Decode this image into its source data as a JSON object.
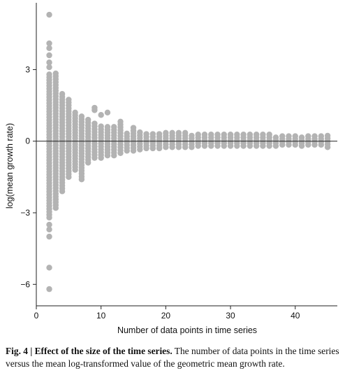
{
  "chart_data": {
    "type": "scatter",
    "xlabel": "Number of data points in time series",
    "ylabel": "log(mean growth rate)",
    "xlim": [
      0,
      46.5
    ],
    "ylim": [
      -6.9,
      5.8
    ],
    "xticks": [
      0,
      10,
      20,
      30,
      40
    ],
    "yticks": [
      -6,
      -3,
      0,
      3
    ],
    "ytick_labels": [
      "−6",
      "−3",
      "0",
      "3"
    ],
    "reference_line_y": 0,
    "grid": false,
    "point_color": "#b3b3b3",
    "series": [
      {
        "columns": [
          {
            "x": 2,
            "min": -3.2,
            "max": 2.8,
            "outliers": [
              5.3,
              4.1,
              3.9,
              3.6,
              3.3,
              3.1,
              -3.5,
              -3.7,
              -4.0,
              -5.3,
              -6.2
            ]
          },
          {
            "x": 3,
            "min": -2.8,
            "max": 2.9
          },
          {
            "x": 4,
            "min": -2.1,
            "max": 2.0
          },
          {
            "x": 5,
            "min": -1.5,
            "max": 1.8
          },
          {
            "x": 6,
            "min": -1.2,
            "max": 1.2
          },
          {
            "x": 7,
            "min": -1.6,
            "max": 1.1
          },
          {
            "x": 8,
            "min": -0.9,
            "max": 0.9
          },
          {
            "x": 9,
            "min": -0.7,
            "max": 0.8,
            "outliers": [
              1.4,
              1.3
            ]
          },
          {
            "x": 10,
            "min": -0.7,
            "max": 0.7,
            "outliers": [
              1.1
            ]
          },
          {
            "x": 11,
            "min": -0.6,
            "max": 0.7,
            "outliers": [
              1.2
            ]
          },
          {
            "x": 12,
            "min": -0.6,
            "max": 0.6
          },
          {
            "x": 13,
            "min": -0.5,
            "max": 0.9
          },
          {
            "x": 14,
            "min": -0.4,
            "max": 0.4
          },
          {
            "x": 15,
            "min": -0.4,
            "max": 0.6
          },
          {
            "x": 16,
            "min": -0.35,
            "max": 0.45
          },
          {
            "x": 17,
            "min": -0.3,
            "max": 0.4
          },
          {
            "x": 18,
            "min": -0.3,
            "max": 0.4
          },
          {
            "x": 19,
            "min": -0.3,
            "max": 0.4
          },
          {
            "x": 20,
            "min": -0.25,
            "max": 0.4
          },
          {
            "x": 21,
            "min": -0.25,
            "max": 0.35
          },
          {
            "x": 22,
            "min": -0.25,
            "max": 0.35
          },
          {
            "x": 23,
            "min": -0.25,
            "max": 0.35
          },
          {
            "x": 24,
            "min": -0.25,
            "max": 0.3
          },
          {
            "x": 25,
            "min": -0.2,
            "max": 0.35
          },
          {
            "x": 26,
            "min": -0.2,
            "max": 0.35
          },
          {
            "x": 27,
            "min": -0.2,
            "max": 0.3
          },
          {
            "x": 28,
            "min": -0.2,
            "max": 0.3
          },
          {
            "x": 29,
            "min": -0.2,
            "max": 0.3
          },
          {
            "x": 30,
            "min": -0.2,
            "max": 0.3
          },
          {
            "x": 31,
            "min": -0.2,
            "max": 0.3
          },
          {
            "x": 32,
            "min": -0.2,
            "max": 0.3
          },
          {
            "x": 33,
            "min": -0.2,
            "max": 0.3
          },
          {
            "x": 34,
            "min": -0.2,
            "max": 0.3
          },
          {
            "x": 35,
            "min": -0.2,
            "max": 0.3
          },
          {
            "x": 36,
            "min": -0.2,
            "max": 0.3
          },
          {
            "x": 37,
            "min": -0.2,
            "max": 0.25
          },
          {
            "x": 38,
            "min": -0.15,
            "max": 0.3
          },
          {
            "x": 39,
            "min": -0.15,
            "max": 0.3
          },
          {
            "x": 40,
            "min": -0.15,
            "max": 0.25
          },
          {
            "x": 41,
            "min": -0.2,
            "max": 0.2
          },
          {
            "x": 42,
            "min": -0.15,
            "max": 0.3
          },
          {
            "x": 43,
            "min": -0.15,
            "max": 0.25
          },
          {
            "x": 44,
            "min": -0.15,
            "max": 0.25
          },
          {
            "x": 45,
            "min": -0.25,
            "max": 0.25
          }
        ]
      }
    ]
  },
  "caption": {
    "label": "Fig. 4 | Effect of the size of the time series.",
    "text": "The number of data points in the time series versus the mean log-transformed value of the geometric mean growth rate."
  }
}
